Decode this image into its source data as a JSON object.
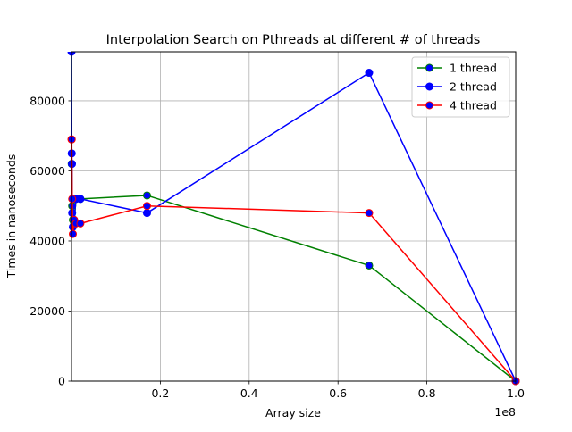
{
  "chart_data": {
    "type": "line",
    "title": "Interpolation Search on Pthreads at different # of threads",
    "xlabel": "Array size",
    "ylabel": "Times in nanoseconds",
    "x_offset_label": "1e8",
    "xlim": [
      0,
      100000000
    ],
    "ylim": [
      0,
      94000
    ],
    "x_scale_factor": 100000000,
    "xticks": [
      0.2,
      0.4,
      0.6,
      0.8,
      1.0
    ],
    "xtick_labels": [
      "0.2",
      "0.4",
      "0.6",
      "0.8",
      "1.0"
    ],
    "yticks": [
      0,
      20000,
      40000,
      60000,
      80000
    ],
    "ytick_labels": [
      "0",
      "20000",
      "40000",
      "60000",
      "80000"
    ],
    "grid": true,
    "legend_position": "upper right",
    "series": [
      {
        "name": "1 thread",
        "color": "#008000",
        "marker_face": "#0000ff",
        "x": [
          0,
          50000,
          150000,
          300000,
          600000,
          1000000,
          2000000,
          17000000,
          67000000,
          100000000
        ],
        "y": [
          96000,
          62000,
          50000,
          46000,
          45000,
          52000,
          52000,
          53000,
          33000,
          0
        ]
      },
      {
        "name": "2 thread",
        "color": "#0000ff",
        "marker_face": "#0000ff",
        "x": [
          0,
          50000,
          100000,
          150000,
          300000,
          600000,
          1000000,
          2000000,
          17000000,
          67000000,
          100000000
        ],
        "y": [
          94000,
          65000,
          62000,
          48000,
          44000,
          46000,
          52000,
          52000,
          48000,
          88000,
          0
        ]
      },
      {
        "name": "4 thread",
        "color": "#ff0000",
        "marker_face": "#0000ff",
        "x": [
          0,
          50000,
          150000,
          300000,
          600000,
          1000000,
          2000000,
          17000000,
          67000000,
          100000000
        ],
        "y": [
          69000,
          69000,
          52000,
          42000,
          46000,
          45000,
          45000,
          50000,
          48000,
          0
        ]
      }
    ]
  }
}
